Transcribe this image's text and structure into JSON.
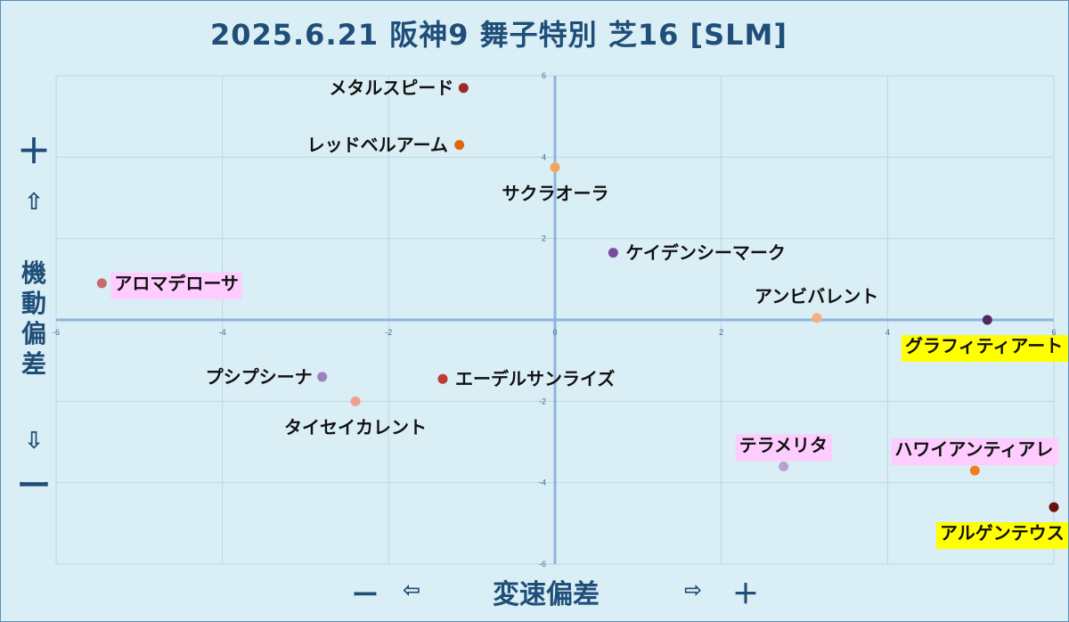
{
  "title": "2025.6.21 阪神9 舞子特別 芝16 [SLM]",
  "y_axis": {
    "plus": "＋",
    "up_arrow": "⇧",
    "label": "機動偏差",
    "down_arrow": "⇩",
    "minus": "ー"
  },
  "x_axis": {
    "minus": "ー",
    "left_arrow": "⇦",
    "label": "変速偏差",
    "right_arrow": "⇨",
    "plus": "＋"
  },
  "colors": {
    "background": "#daeef5",
    "grid": "#bcd6e0",
    "axis": "#8fb4e0",
    "tick": "#3a6ea5",
    "highlight_yellow": "#ffff00",
    "highlight_pink": "#ffccff"
  },
  "chart_data": {
    "type": "scatter",
    "xlim": [
      -6,
      6
    ],
    "ylim": [
      -6,
      6
    ],
    "xticks": [
      -6,
      -4,
      -2,
      0,
      2,
      4,
      6
    ],
    "yticks": [
      -6,
      -4,
      -2,
      0,
      2,
      4,
      6
    ],
    "grid": true,
    "points": [
      {
        "name": "メタルスピード",
        "x": -1.1,
        "y": 5.7,
        "color": "#9c2a22",
        "label_pos": "left",
        "highlight": ""
      },
      {
        "name": "レッドベルアーム",
        "x": -1.15,
        "y": 4.3,
        "color": "#e0660e",
        "label_pos": "left",
        "highlight": ""
      },
      {
        "name": "サクラオーラ",
        "x": 0.0,
        "y": 3.75,
        "color": "#f4a460",
        "label_pos": "below",
        "highlight": ""
      },
      {
        "name": "ケイデンシーマーク",
        "x": 0.7,
        "y": 1.65,
        "color": "#7a4b9a",
        "label_pos": "right",
        "highlight": ""
      },
      {
        "name": "アロマデローサ",
        "x": -5.45,
        "y": 0.9,
        "color": "#c86b6b",
        "label_pos": "right",
        "highlight": "pink"
      },
      {
        "name": "アンビバレント",
        "x": 3.15,
        "y": 0.05,
        "color": "#f5b080",
        "label_pos": "above",
        "highlight": ""
      },
      {
        "name": "グラフィティアート",
        "x": 5.2,
        "y": 0.0,
        "color": "#4e2a5e",
        "label_pos": "below",
        "highlight": "yellow"
      },
      {
        "name": "プシプシーナ",
        "x": -2.8,
        "y": -1.4,
        "color": "#9e7fc0",
        "label_pos": "left",
        "highlight": ""
      },
      {
        "name": "エーデルサンライズ",
        "x": -1.35,
        "y": -1.45,
        "color": "#c0393b",
        "label_pos": "right",
        "highlight": ""
      },
      {
        "name": "タイセイカレント",
        "x": -2.4,
        "y": -2.0,
        "color": "#eda090",
        "label_pos": "below",
        "highlight": ""
      },
      {
        "name": "テラメリタ",
        "x": 2.75,
        "y": -3.6,
        "color": "#b9a0d0",
        "label_pos": "above",
        "highlight": "pink"
      },
      {
        "name": "ハワイアンティアレ",
        "x": 5.05,
        "y": -3.7,
        "color": "#f07d1e",
        "label_pos": "above",
        "highlight": "pink"
      },
      {
        "name": "アルゲンテウス",
        "x": 6.0,
        "y": -4.6,
        "color": "#6b1010",
        "label_pos": "below",
        "highlight": "yellow"
      }
    ]
  }
}
